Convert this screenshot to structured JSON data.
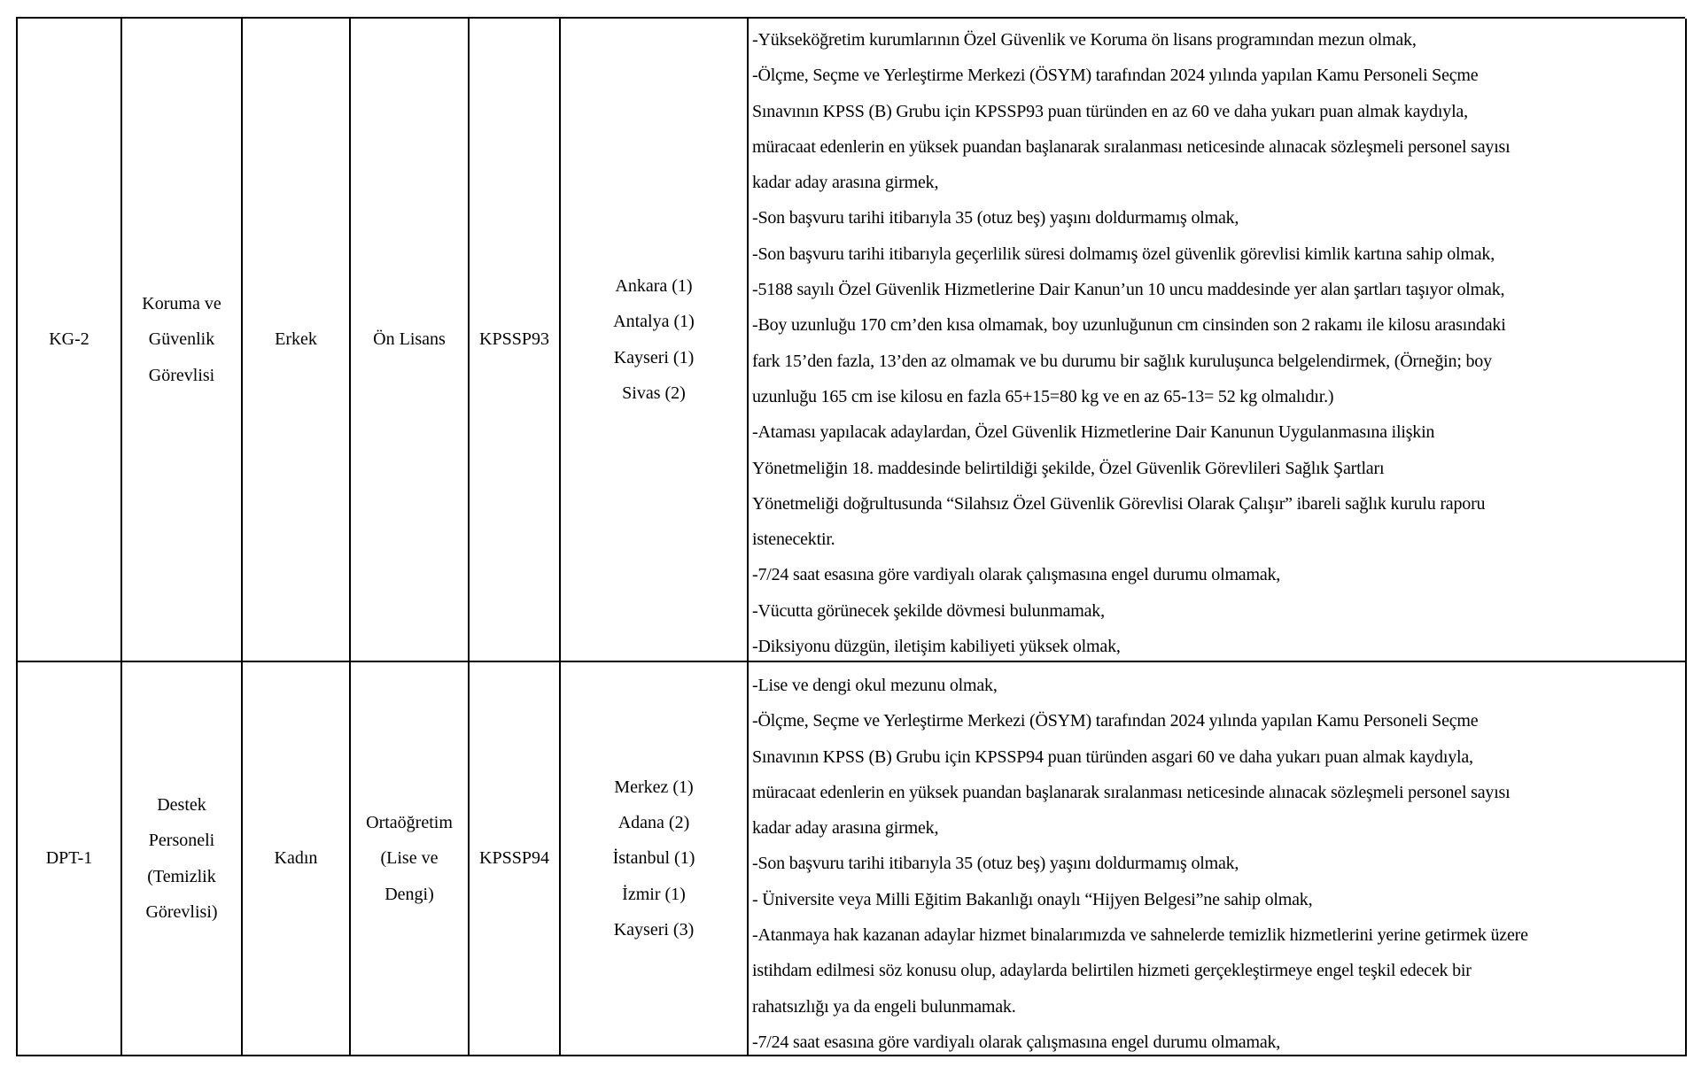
{
  "rows": [
    {
      "code": "KG-2",
      "title": [
        "Koruma ve",
        "Güvenlik",
        "Görevlisi"
      ],
      "gender": [
        "Erkek"
      ],
      "education": [
        "Ön Lisans"
      ],
      "score_type": "KPSSP93",
      "locations": [
        "Ankara (1)",
        "Antalya (1)",
        "Kayseri (1)",
        "Sivas (2)"
      ],
      "requirements": [
        "-Yükseköğretim kurumlarının Özel Güvenlik ve Koruma ön lisans programından mezun olmak,",
        "-Ölçme, Seçme ve Yerleştirme Merkezi (ÖSYM) tarafından 2024 yılında yapılan Kamu Personeli Seçme",
        "Sınavının KPSS (B) Grubu için KPSSP93 puan türünden en az 60 ve daha yukarı puan almak kaydıyla,",
        "müracaat edenlerin en yüksek puandan başlanarak sıralanması neticesinde alınacak sözleşmeli personel sayısı",
        "kadar aday arasına girmek,",
        "-Son başvuru tarihi itibarıyla 35 (otuz beş) yaşını doldurmamış olmak,",
        "-Son başvuru tarihi itibarıyla geçerlilik süresi dolmamış özel güvenlik görevlisi kimlik kartına sahip olmak,",
        "-5188 sayılı Özel Güvenlik Hizmetlerine Dair Kanun’un 10 uncu maddesinde yer alan şartları taşıyor olmak,",
        "-Boy uzunluğu 170 cm’den kısa olmamak, boy uzunluğunun cm cinsinden son 2 rakamı ile kilosu arasındaki",
        "fark 15’den fazla, 13’den az olmamak ve bu durumu bir sağlık kuruluşunca belgelendirmek, (Örneğin; boy",
        "uzunluğu 165 cm ise kilosu en fazla 65+15=80 kg ve en az 65-13= 52 kg olmalıdır.)",
        "-Ataması yapılacak adaylardan, Özel Güvenlik Hizmetlerine Dair Kanunun Uygulanmasına ilişkin",
        "Yönetmeliğin 18. maddesinde belirtildiği şekilde, Özel Güvenlik Görevlileri Sağlık Şartları",
        "Yönetmeliği doğrultusunda “Silahsız Özel Güvenlik Görevlisi Olarak Çalışır” ibareli sağlık kurulu raporu",
        "istenecektir.",
        "-7/24 saat esasına göre vardiyalı olarak çalışmasına engel durumu olmamak,",
        "-Vücutta görünecek şekilde dövmesi bulunmamak,",
        "-Diksiyonu düzgün, iletişim kabiliyeti yüksek olmak,"
      ]
    },
    {
      "code": "DPT-1",
      "title": [
        "Destek",
        "Personeli",
        "(Temizlik",
        "Görevlisi)"
      ],
      "gender": [
        "Kadın"
      ],
      "education": [
        "Ortaöğretim",
        "(Lise ve",
        "Dengi)"
      ],
      "score_type": "KPSSP94",
      "locations": [
        "Merkez (1)",
        "Adana (2)",
        "İstanbul (1)",
        "İzmir (1)",
        "Kayseri (3)"
      ],
      "requirements": [
        "-Lise ve dengi okul mezunu olmak,",
        "-Ölçme, Seçme ve Yerleştirme Merkezi (ÖSYM) tarafından 2024 yılında yapılan Kamu Personeli Seçme",
        "Sınavının KPSS (B) Grubu için KPSSP94 puan türünden asgari 60 ve daha yukarı puan almak kaydıyla,",
        "müracaat edenlerin en yüksek puandan başlanarak sıralanması neticesinde alınacak sözleşmeli personel sayısı",
        "kadar aday arasına girmek,",
        "-Son başvuru tarihi itibarıyla 35 (otuz beş) yaşını doldurmamış olmak,",
        "- Üniversite veya Milli Eğitim Bakanlığı onaylı “Hijyen Belgesi”ne sahip olmak,",
        "-Atanmaya hak kazanan adaylar hizmet binalarımızda ve sahnelerde temizlik hizmetlerini yerine getirmek üzere",
        "istihdam edilmesi söz konusu olup, adaylarda belirtilen hizmeti gerçekleştirmeye engel teşkil edecek bir",
        "rahatsızlığı ya da engeli bulunmamak.",
        "-7/24 saat esasına göre vardiyalı olarak çalışmasına engel durumu olmamak,"
      ]
    }
  ]
}
